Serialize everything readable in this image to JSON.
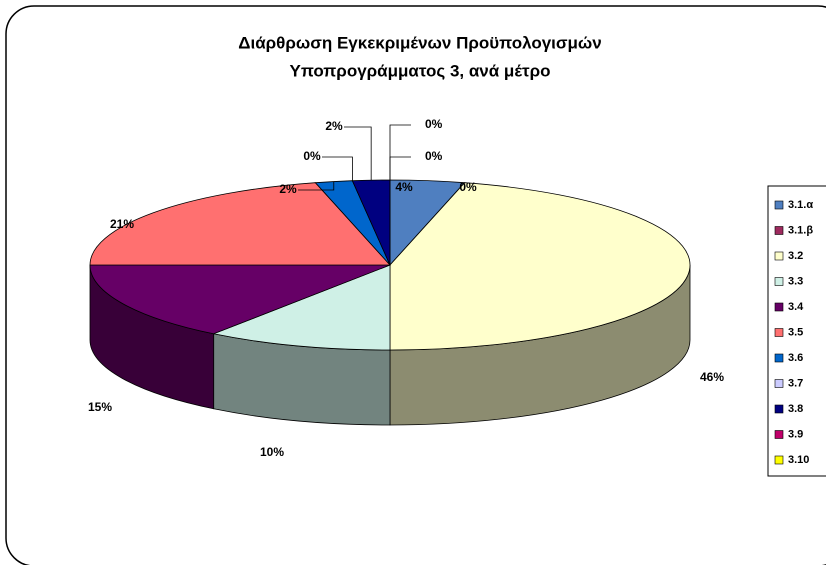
{
  "chart_data": {
    "type": "pie3d",
    "title": [
      "Διάρθρωση Εγκεκριμένων Προϋπολογισμών",
      "Υποπρογράμματος 3, ανά μέτρο"
    ],
    "categories": [
      "3.1.α",
      "3.1.β",
      "3.2",
      "3.3",
      "3.4",
      "3.5",
      "3.6",
      "3.7",
      "3.8",
      "3.9",
      "3.10"
    ],
    "values": [
      4,
      0,
      46,
      10,
      15,
      21,
      2,
      0,
      2,
      0,
      0
    ],
    "value_labels": [
      "4%",
      "0%",
      "46%",
      "10%",
      "15%",
      "21%",
      "2%",
      "0%",
      "2%",
      "0%",
      "0%"
    ],
    "colors": [
      "#4f7fc0",
      "#9e2a5e",
      "#ffffcc",
      "#cff0e6",
      "#660066",
      "#ff7070",
      "#0066cc",
      "#ccccff",
      "#000080",
      "#c0006a",
      "#ffff00"
    ],
    "legend": "right"
  }
}
